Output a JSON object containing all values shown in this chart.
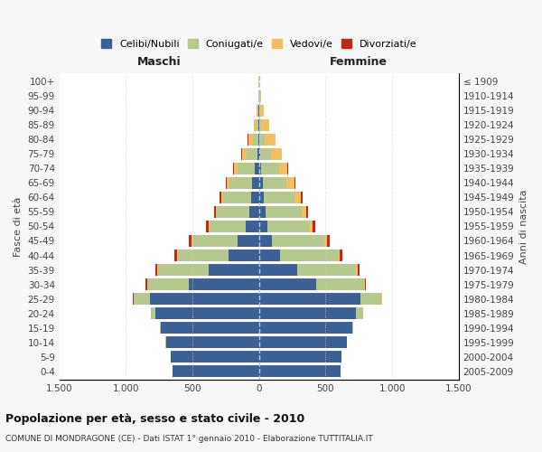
{
  "age_groups": [
    "0-4",
    "5-9",
    "10-14",
    "15-19",
    "20-24",
    "25-29",
    "30-34",
    "35-39",
    "40-44",
    "45-49",
    "50-54",
    "55-59",
    "60-64",
    "65-69",
    "70-74",
    "75-79",
    "80-84",
    "85-89",
    "90-94",
    "95-99",
    "100+"
  ],
  "birth_years": [
    "2005-2009",
    "2000-2004",
    "1995-1999",
    "1990-1994",
    "1985-1989",
    "1980-1984",
    "1975-1979",
    "1970-1974",
    "1965-1969",
    "1960-1964",
    "1955-1959",
    "1950-1954",
    "1945-1949",
    "1940-1944",
    "1935-1939",
    "1930-1934",
    "1925-1929",
    "1920-1924",
    "1915-1919",
    "1910-1914",
    "≤ 1909"
  ],
  "male": {
    "celibi": [
      650,
      660,
      700,
      740,
      780,
      820,
      530,
      380,
      230,
      160,
      100,
      75,
      60,
      50,
      30,
      15,
      8,
      4,
      2,
      1,
      1
    ],
    "coniugati": [
      0,
      0,
      2,
      5,
      30,
      120,
      310,
      380,
      380,
      340,
      270,
      240,
      210,
      170,
      130,
      80,
      40,
      15,
      5,
      2,
      0
    ],
    "vedovi": [
      0,
      0,
      0,
      0,
      0,
      0,
      0,
      2,
      3,
      5,
      8,
      10,
      15,
      20,
      30,
      35,
      35,
      22,
      12,
      5,
      2
    ],
    "divorziati": [
      0,
      0,
      0,
      0,
      2,
      5,
      10,
      18,
      20,
      20,
      18,
      15,
      12,
      8,
      5,
      3,
      1,
      0,
      0,
      0,
      0
    ]
  },
  "female": {
    "nubili": [
      610,
      620,
      660,
      700,
      730,
      760,
      430,
      290,
      160,
      100,
      65,
      48,
      38,
      28,
      18,
      10,
      5,
      2,
      1,
      1,
      0
    ],
    "coniugate": [
      0,
      0,
      2,
      8,
      50,
      160,
      360,
      440,
      430,
      390,
      310,
      270,
      230,
      180,
      130,
      80,
      35,
      12,
      4,
      1,
      0
    ],
    "vedove": [
      0,
      0,
      0,
      0,
      0,
      2,
      5,
      10,
      15,
      20,
      28,
      35,
      45,
      55,
      65,
      80,
      85,
      60,
      30,
      12,
      5
    ],
    "divorziate": [
      0,
      0,
      0,
      0,
      2,
      5,
      10,
      18,
      22,
      22,
      20,
      18,
      15,
      10,
      5,
      3,
      1,
      0,
      0,
      0,
      0
    ]
  },
  "colors": {
    "celibi": "#3a6096",
    "coniugati": "#b5c98e",
    "vedovi": "#f0c060",
    "divorziati": "#c0281a"
  },
  "xlim": 1500,
  "title": "Popolazione per età, sesso e stato civile - 2010",
  "subtitle": "COMUNE DI MONDRAGONE (CE) - Dati ISTAT 1° gennaio 2010 - Elaborazione TUTTITALIA.IT",
  "xlabel_left": "Maschi",
  "xlabel_right": "Femmine",
  "ylabel_left": "Fasce di età",
  "ylabel_right": "Anni di nascita",
  "xticks": [
    -1500,
    -1000,
    -500,
    0,
    500,
    1000,
    1500
  ],
  "xtick_labels": [
    "1.500",
    "1.000",
    "500",
    "0",
    "500",
    "1.000",
    "1.500"
  ],
  "legend_labels": [
    "Celibi/Nubili",
    "Coniugati/e",
    "Vedovi/e",
    "Divorziati/e"
  ],
  "bg_color": "#f7f7f7",
  "plot_bg": "#ffffff"
}
